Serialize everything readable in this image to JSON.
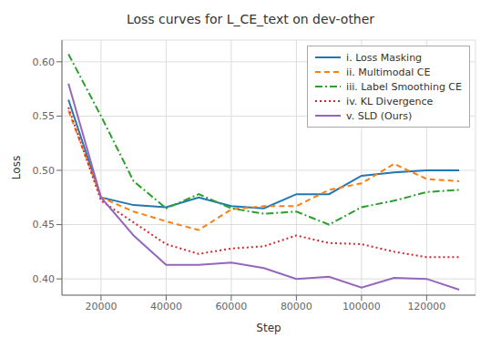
{
  "chart_data": {
    "type": "line",
    "title": "Loss curves for L_CE_text on dev-other",
    "x_label": "Step",
    "y_label": "Loss",
    "x": [
      10000,
      20000,
      30000,
      40000,
      50000,
      60000,
      70000,
      80000,
      90000,
      100000,
      110000,
      120000,
      130000
    ],
    "series": [
      {
        "name": "i. Loss Masking",
        "color": "#1f77b4",
        "line_style": "solid",
        "values": [
          0.565,
          0.475,
          0.468,
          0.466,
          0.475,
          0.467,
          0.465,
          0.478,
          0.478,
          0.495,
          0.498,
          0.5,
          0.5
        ]
      },
      {
        "name": "ii. Multimodal CE",
        "color": "#ff7f0e",
        "line_style": "dashed",
        "values": [
          0.555,
          0.475,
          0.462,
          0.453,
          0.445,
          0.464,
          0.467,
          0.467,
          0.482,
          0.488,
          0.506,
          0.492,
          0.49
        ]
      },
      {
        "name": "iii. Label Smoothing CE",
        "color": "#2ca02c",
        "line_style": "dashdot",
        "values": [
          0.607,
          0.55,
          0.49,
          0.465,
          0.478,
          0.465,
          0.46,
          0.462,
          0.45,
          0.466,
          0.472,
          0.48,
          0.482
        ]
      },
      {
        "name": "iv. KL Divergence",
        "color": "#d62728",
        "line_style": "dotted",
        "values": [
          0.558,
          0.472,
          0.452,
          0.432,
          0.423,
          0.428,
          0.43,
          0.44,
          0.433,
          0.432,
          0.425,
          0.42,
          0.42
        ]
      },
      {
        "name": "v. SLD (Ours)",
        "color": "#9467bd",
        "line_style": "solid",
        "values": [
          0.58,
          0.475,
          0.44,
          0.413,
          0.413,
          0.415,
          0.41,
          0.4,
          0.402,
          0.392,
          0.401,
          0.4,
          0.39
        ]
      }
    ],
    "xlim": [
      8000,
      135000
    ],
    "xticks": [
      20000,
      40000,
      60000,
      80000,
      100000,
      120000
    ],
    "ylim": [
      0.385,
      0.62
    ],
    "yticks": [
      {
        "value": 0.4,
        "label": "0.40"
      },
      {
        "value": 0.45,
        "label": "0.45"
      },
      {
        "value": 0.5,
        "label": "0.50"
      },
      {
        "value": 0.55,
        "label": "0.55"
      },
      {
        "value": 0.6,
        "label": "0.60"
      }
    ],
    "grid": true,
    "legend": "upper right"
  }
}
